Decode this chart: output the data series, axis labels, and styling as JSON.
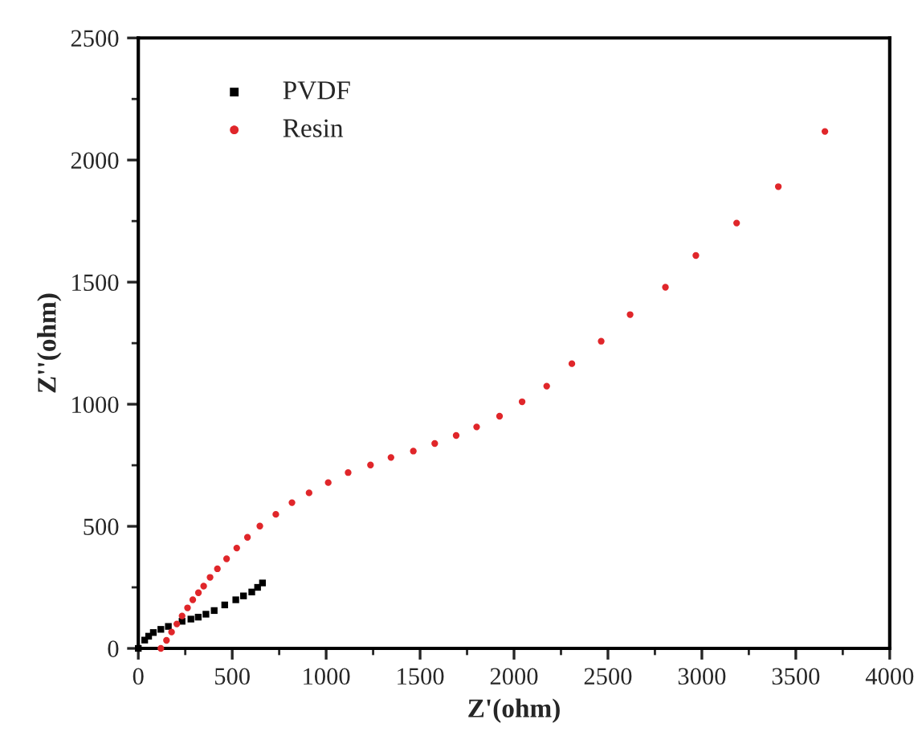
{
  "chart_data": {
    "type": "scatter",
    "xlabel": "Z'(ohm)",
    "ylabel": "Z''(ohm)",
    "xlim": [
      0,
      4000
    ],
    "xticks": [
      0,
      500,
      1000,
      1500,
      2000,
      2500,
      3000,
      3500,
      4000
    ],
    "ylim": [
      0,
      2500
    ],
    "yticks": [
      0,
      500,
      1000,
      1500,
      2000,
      2500
    ],
    "legend": "top left",
    "grid": false,
    "series": [
      {
        "name": "PVDF",
        "color": "#000000",
        "marker": "square",
        "x": [
          0,
          34,
          55,
          80,
          120,
          160,
          233,
          280,
          319,
          360,
          404,
          460,
          519,
          560,
          604,
          635,
          661
        ],
        "values": [
          0,
          34,
          50,
          65,
          78,
          90,
          111,
          120,
          128,
          140,
          155,
          178,
          199,
          215,
          231,
          250,
          268
        ]
      },
      {
        "name": "Resin",
        "color": "#e0262a",
        "marker": "circle",
        "x": [
          120,
          150,
          177,
          205,
          233,
          262,
          290,
          320,
          348,
          382,
          421,
          470,
          524,
          581,
          647,
          732,
          818,
          909,
          1011,
          1117,
          1236,
          1345,
          1464,
          1578,
          1692,
          1801,
          1923,
          2043,
          2174,
          2308,
          2464,
          2618,
          2806,
          2968,
          3185,
          3407,
          3655
        ],
        "values": [
          0,
          33,
          67,
          100,
          133,
          166,
          199,
          228,
          255,
          291,
          326,
          367,
          411,
          455,
          501,
          549,
          597,
          637,
          679,
          720,
          751,
          782,
          808,
          839,
          872,
          907,
          951,
          1010,
          1074,
          1166,
          1258,
          1367,
          1479,
          1609,
          1742,
          1891,
          2117
        ]
      }
    ]
  }
}
